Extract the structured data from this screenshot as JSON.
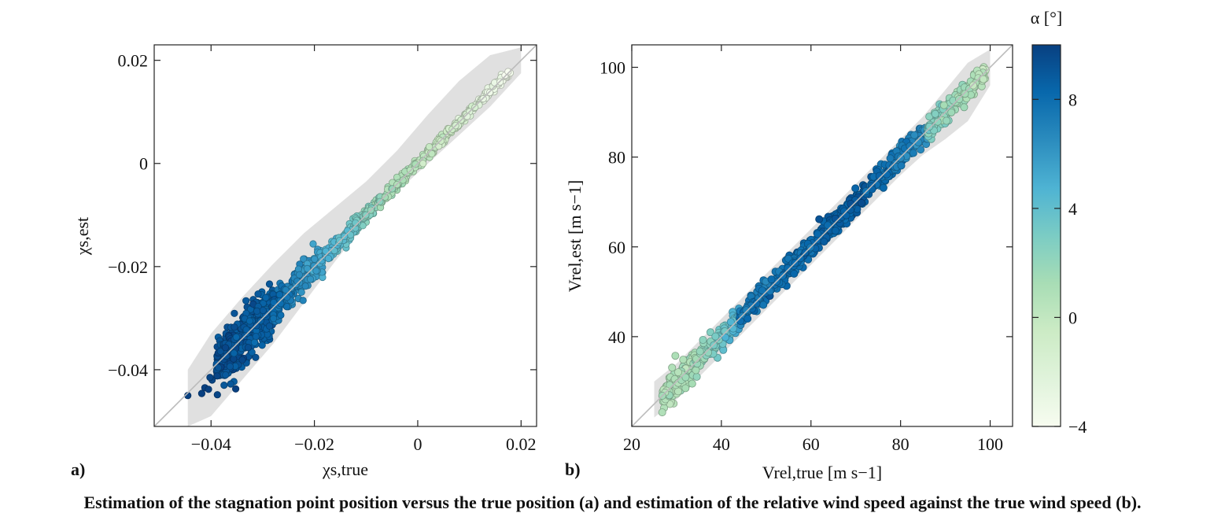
{
  "caption": "Estimation of the stagnation point position versus the true position (a) and estimation of the relative wind speed against the true wind speed (b).",
  "colors": {
    "colormap": [
      "#f7fcf0",
      "#e0f3db",
      "#ccebc5",
      "#a8ddb5",
      "#7bccc4",
      "#4eb3d3",
      "#2b8cbe",
      "#0868ac",
      "#084081"
    ],
    "band": "#e0e0e0",
    "identity_line": "#bbbbbb",
    "frame": "#222222"
  },
  "colorbar": {
    "label": "α [°]",
    "range": [
      -4,
      10
    ],
    "ticks": [
      -4,
      0,
      4,
      8
    ]
  },
  "chart_data": [
    {
      "type": "scatter",
      "panel": "a)",
      "xlabel": "χs,true",
      "ylabel": "χs,est",
      "xlim": [
        -0.051,
        0.023
      ],
      "ylim": [
        -0.051,
        0.023
      ],
      "xticks": [
        -0.04,
        -0.02,
        0,
        0.02
      ],
      "yticks": [
        -0.04,
        -0.02,
        0,
        0.02
      ],
      "tick_labels": [
        "−0.04",
        "−0.02",
        "0",
        "0.02"
      ],
      "identity_line": true,
      "grid": false,
      "band_x": [
        -0.0445,
        -0.04,
        -0.034,
        -0.028,
        -0.022,
        -0.016,
        -0.01,
        -0.004,
        0.002,
        0.008,
        0.014,
        0.02
      ],
      "band_low": [
        -0.051,
        -0.049,
        -0.042,
        -0.035,
        -0.027,
        -0.019,
        -0.0115,
        -0.0055,
        0.0,
        0.0055,
        0.011,
        0.0175
      ],
      "band_high": [
        -0.04,
        -0.033,
        -0.026,
        -0.0195,
        -0.0135,
        -0.0085,
        -0.0035,
        0.0025,
        0.0095,
        0.016,
        0.021,
        0.0225
      ],
      "segments": [
        {
          "x_start": -0.039,
          "x_end": -0.028,
          "alpha_start": 9.5,
          "alpha_end": 8.5,
          "spread": 0.0022,
          "count": 520
        },
        {
          "x_start": -0.028,
          "x_end": -0.018,
          "alpha_start": 8.5,
          "alpha_end": 5.0,
          "spread": 0.0015,
          "count": 240
        },
        {
          "x_start": -0.018,
          "x_end": -0.008,
          "alpha_start": 5.0,
          "alpha_end": 2.0,
          "spread": 0.0008,
          "count": 160
        },
        {
          "x_start": -0.008,
          "x_end": 0.006,
          "alpha_start": 2.0,
          "alpha_end": -1.0,
          "spread": 0.0005,
          "count": 200
        },
        {
          "x_start": 0.006,
          "x_end": 0.018,
          "alpha_start": -1.0,
          "alpha_end": -3.8,
          "spread": 0.0004,
          "count": 150
        }
      ],
      "outliers": [
        {
          "x": -0.0445,
          "y": -0.045,
          "alpha": 10.0
        },
        {
          "x": -0.0412,
          "y": -0.0435,
          "alpha": 10.0
        },
        {
          "x": -0.0405,
          "y": -0.0438,
          "alpha": 10.0
        },
        {
          "x": -0.0418,
          "y": -0.0446,
          "alpha": 10.0
        },
        {
          "x": -0.0398,
          "y": -0.042,
          "alpha": 9.8
        },
        {
          "x": -0.0388,
          "y": -0.0412,
          "alpha": 9.8
        },
        {
          "x": -0.0402,
          "y": -0.0415,
          "alpha": 9.8
        }
      ]
    },
    {
      "type": "scatter",
      "panel": "b)",
      "xlabel": "Vrel,true [m s−1]",
      "ylabel": "Vrel,est [m s−1]",
      "xlim": [
        20,
        105
      ],
      "ylim": [
        20,
        105
      ],
      "xticks": [
        20,
        40,
        60,
        80,
        100
      ],
      "yticks": [
        40,
        60,
        80,
        100
      ],
      "tick_labels_x": [
        "20",
        "40",
        "60",
        "80",
        "100"
      ],
      "tick_labels_y": [
        "40",
        "60",
        "80",
        "100"
      ],
      "identity_line": true,
      "grid": false,
      "band_x": [
        25,
        30,
        40,
        50,
        60,
        70,
        80,
        85,
        90,
        95,
        100
      ],
      "band_low": [
        22,
        26,
        36,
        46,
        56,
        66,
        76,
        80.5,
        84,
        88,
        96
      ],
      "band_high": [
        30,
        34,
        44,
        54,
        64,
        74,
        84,
        89,
        95,
        101,
        104
      ],
      "segments": [
        {
          "x_start": 26.5,
          "x_end": 34,
          "alpha_start": 0.5,
          "alpha_end": 1.5,
          "spread": 1.6,
          "count": 120
        },
        {
          "x_start": 34,
          "x_end": 44,
          "alpha_start": 1.5,
          "alpha_end": 5.0,
          "spread": 1.3,
          "count": 160
        },
        {
          "x_start": 44,
          "x_end": 72,
          "alpha_start": 7.5,
          "alpha_end": 8.8,
          "spread": 1.2,
          "count": 380
        },
        {
          "x_start": 72,
          "x_end": 86,
          "alpha_start": 8.5,
          "alpha_end": 6.5,
          "spread": 1.1,
          "count": 180
        },
        {
          "x_start": 86,
          "x_end": 99,
          "alpha_start": 3.0,
          "alpha_end": 0.0,
          "spread": 1.2,
          "count": 200
        }
      ],
      "outliers": []
    }
  ]
}
